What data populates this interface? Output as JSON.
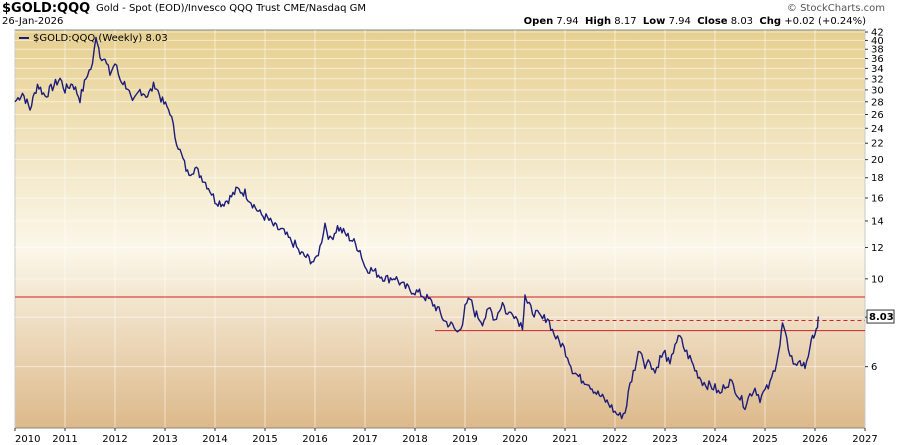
{
  "header": {
    "symbol": "$GOLD:QQQ",
    "description": "Gold - Spot (EOD)/Invesco QQQ Trust",
    "exchange": "CME/Nasdaq GM",
    "date": "26-Jan-2026",
    "brand": "© StockCharts.com",
    "ohlc": {
      "open_label": "Open",
      "open": "7.94",
      "high_label": "High",
      "high": "8.17",
      "low_label": "Low",
      "low": "7.94",
      "close_label": "Close",
      "close": "8.03",
      "chg_label": "Chg",
      "chg": "+0.02 (+0.24%)"
    }
  },
  "colors": {
    "line": "#1c1c7a",
    "hline": "#cc2222",
    "bg_top": "#e6cf8f",
    "bg_mid": "#fbf7ea",
    "bg_bottom": "#ddb98a",
    "price_box": "#ffffff"
  },
  "chart_data": {
    "type": "line",
    "title": "$GOLD:QQQ",
    "legend": "$GOLD:QQQ (Weekly) 8.03",
    "legend_position": "top-left",
    "scale": "log",
    "ylim": [
      4.2,
      42.5
    ],
    "xlim": [
      2010.0,
      2027.0
    ],
    "x_ticks": [
      2010,
      2011,
      2012,
      2013,
      2014,
      2015,
      2016,
      2017,
      2018,
      2019,
      2020,
      2021,
      2022,
      2023,
      2024,
      2025,
      2026,
      2027
    ],
    "y_ticks": [
      6,
      8,
      10,
      12,
      14,
      16,
      18,
      20,
      22,
      24,
      26,
      28,
      30,
      32,
      34,
      36,
      38,
      40,
      42
    ],
    "last_value": "8.03",
    "series": [
      {
        "name": "$GOLD:QQQ (Weekly)",
        "points": [
          [
            2010.0,
            28.0
          ],
          [
            2010.15,
            29.5
          ],
          [
            2010.3,
            26.8
          ],
          [
            2010.45,
            31.0
          ],
          [
            2010.6,
            29.0
          ],
          [
            2010.75,
            30.5
          ],
          [
            2010.9,
            32.0
          ],
          [
            2011.0,
            30.0
          ],
          [
            2011.15,
            31.2
          ],
          [
            2011.3,
            28.5
          ],
          [
            2011.45,
            33.0
          ],
          [
            2011.55,
            34.5
          ],
          [
            2011.62,
            41.5
          ],
          [
            2011.7,
            37.0
          ],
          [
            2011.8,
            35.5
          ],
          [
            2011.9,
            33.0
          ],
          [
            2012.0,
            35.0
          ],
          [
            2012.1,
            32.0
          ],
          [
            2012.25,
            30.5
          ],
          [
            2012.35,
            27.5
          ],
          [
            2012.5,
            30.0
          ],
          [
            2012.65,
            29.0
          ],
          [
            2012.8,
            31.0
          ],
          [
            2012.95,
            28.0
          ],
          [
            2013.1,
            26.5
          ],
          [
            2013.2,
            23.0
          ],
          [
            2013.3,
            21.0
          ],
          [
            2013.45,
            18.5
          ],
          [
            2013.6,
            19.0
          ],
          [
            2013.75,
            18.0
          ],
          [
            2013.9,
            16.8
          ],
          [
            2014.0,
            15.8
          ],
          [
            2014.15,
            15.5
          ],
          [
            2014.3,
            16.0
          ],
          [
            2014.45,
            16.8
          ],
          [
            2014.6,
            16.5
          ],
          [
            2014.75,
            15.5
          ],
          [
            2014.9,
            14.6
          ],
          [
            2015.05,
            14.2
          ],
          [
            2015.2,
            13.5
          ],
          [
            2015.35,
            13.2
          ],
          [
            2015.5,
            12.5
          ],
          [
            2015.6,
            12.2
          ],
          [
            2015.7,
            11.6
          ],
          [
            2015.85,
            11.3
          ],
          [
            2016.0,
            11.0
          ],
          [
            2016.1,
            12.0
          ],
          [
            2016.2,
            13.8
          ],
          [
            2016.3,
            12.5
          ],
          [
            2016.45,
            13.5
          ],
          [
            2016.6,
            13.0
          ],
          [
            2016.75,
            12.5
          ],
          [
            2016.9,
            11.8
          ],
          [
            2017.0,
            10.7
          ],
          [
            2017.15,
            10.5
          ],
          [
            2017.3,
            10.2
          ],
          [
            2017.45,
            10.0
          ],
          [
            2017.6,
            10.1
          ],
          [
            2017.75,
            9.6
          ],
          [
            2017.9,
            9.4
          ],
          [
            2018.0,
            9.3
          ],
          [
            2018.15,
            9.1
          ],
          [
            2018.3,
            8.8
          ],
          [
            2018.45,
            8.4
          ],
          [
            2018.6,
            7.8
          ],
          [
            2018.75,
            7.6
          ],
          [
            2018.85,
            7.3
          ],
          [
            2018.95,
            7.8
          ],
          [
            2019.0,
            8.4
          ],
          [
            2019.1,
            8.9
          ],
          [
            2019.2,
            8.2
          ],
          [
            2019.35,
            7.8
          ],
          [
            2019.5,
            8.4
          ],
          [
            2019.6,
            7.9
          ],
          [
            2019.75,
            8.7
          ],
          [
            2019.85,
            8.1
          ],
          [
            2019.95,
            8.3
          ],
          [
            2020.05,
            7.9
          ],
          [
            2020.15,
            7.6
          ],
          [
            2020.2,
            9.2
          ],
          [
            2020.25,
            8.6
          ],
          [
            2020.35,
            8.3
          ],
          [
            2020.45,
            8.1
          ],
          [
            2020.55,
            7.9
          ],
          [
            2020.65,
            8.0
          ],
          [
            2020.75,
            7.4
          ],
          [
            2020.85,
            7.0
          ],
          [
            2020.95,
            6.8
          ],
          [
            2021.05,
            6.4
          ],
          [
            2021.15,
            5.9
          ],
          [
            2021.3,
            5.6
          ],
          [
            2021.45,
            5.5
          ],
          [
            2021.6,
            5.2
          ],
          [
            2021.75,
            5.0
          ],
          [
            2021.9,
            4.8
          ],
          [
            2022.0,
            4.6
          ],
          [
            2022.1,
            4.5
          ],
          [
            2022.2,
            4.6
          ],
          [
            2022.3,
            5.4
          ],
          [
            2022.4,
            6.0
          ],
          [
            2022.5,
            6.7
          ],
          [
            2022.6,
            6.1
          ],
          [
            2022.7,
            6.2
          ],
          [
            2022.8,
            5.8
          ],
          [
            2022.9,
            6.3
          ],
          [
            2023.0,
            6.5
          ],
          [
            2023.1,
            6.0
          ],
          [
            2023.2,
            6.9
          ],
          [
            2023.3,
            7.1
          ],
          [
            2023.4,
            6.6
          ],
          [
            2023.5,
            6.3
          ],
          [
            2023.6,
            5.9
          ],
          [
            2023.75,
            5.5
          ],
          [
            2023.85,
            5.4
          ],
          [
            2024.0,
            5.3
          ],
          [
            2024.1,
            5.1
          ],
          [
            2024.2,
            5.4
          ],
          [
            2024.3,
            5.5
          ],
          [
            2024.4,
            5.3
          ],
          [
            2024.5,
            5.0
          ],
          [
            2024.6,
            4.8
          ],
          [
            2024.7,
            5.1
          ],
          [
            2024.8,
            5.3
          ],
          [
            2024.9,
            5.0
          ],
          [
            2025.0,
            5.2
          ],
          [
            2025.1,
            5.4
          ],
          [
            2025.2,
            6.0
          ],
          [
            2025.3,
            6.8
          ],
          [
            2025.35,
            7.7
          ],
          [
            2025.4,
            7.2
          ],
          [
            2025.5,
            6.5
          ],
          [
            2025.6,
            6.0
          ],
          [
            2025.7,
            6.3
          ],
          [
            2025.75,
            5.9
          ],
          [
            2025.8,
            6.1
          ],
          [
            2025.9,
            6.6
          ],
          [
            2025.95,
            7.1
          ],
          [
            2026.0,
            7.3
          ],
          [
            2026.05,
            7.5
          ],
          [
            2026.07,
            8.03
          ]
        ]
      }
    ],
    "reference_lines": [
      {
        "style": "solid",
        "value": 9.0,
        "from": 2010.0,
        "to": 2027.0
      },
      {
        "style": "solid",
        "value": 7.4,
        "from": 2018.4,
        "to": 2027.0
      },
      {
        "style": "dashed",
        "value": 7.85,
        "from": 2020.55,
        "to": 2027.0
      }
    ]
  }
}
